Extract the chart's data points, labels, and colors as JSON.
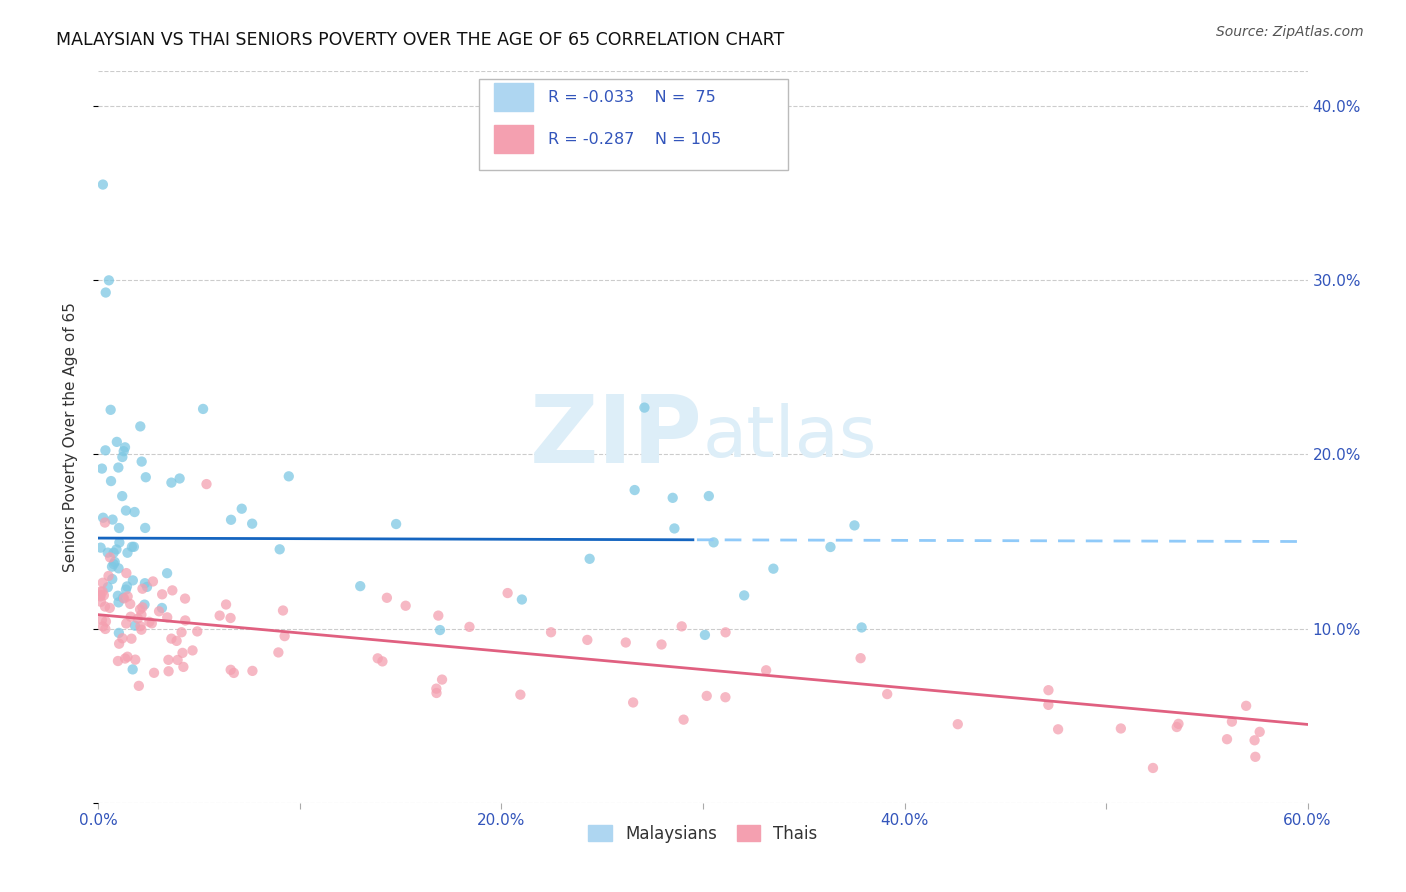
{
  "title": "MALAYSIAN VS THAI SENIORS POVERTY OVER THE AGE OF 65 CORRELATION CHART",
  "source": "Source: ZipAtlas.com",
  "ylabel": "Seniors Poverty Over the Age of 65",
  "xlim": [
    0.0,
    0.6
  ],
  "ylim": [
    0.0,
    0.42
  ],
  "xticks": [
    0.0,
    0.1,
    0.2,
    0.3,
    0.4,
    0.5,
    0.6
  ],
  "yticks": [
    0.0,
    0.1,
    0.2,
    0.3,
    0.4
  ],
  "ytick_labels_right": [
    "",
    "10.0%",
    "20.0%",
    "30.0%",
    "40.0%"
  ],
  "xtick_labels": [
    "0.0%",
    "",
    "20.0%",
    "",
    "40.0%",
    "",
    "60.0%"
  ],
  "legend_label1": "Malaysians",
  "legend_label2": "Thais",
  "r1": "-0.033",
  "n1": "75",
  "r2": "-0.287",
  "n2": "105",
  "color_malaysia": "#7ec8e3",
  "color_thai": "#f4a0b0",
  "trendline_malaysia_solid": "#1565c0",
  "trendline_malaysia_dash": "#90caf9",
  "trendline_thai": "#e06080",
  "watermark_text": "ZIPatlas",
  "watermark_color": "#ddeef8",
  "background_color": "#ffffff",
  "grid_color": "#cccccc",
  "text_color": "#3355bb",
  "mal_slope": -0.033,
  "mal_intercept": 0.152,
  "thai_slope": -0.105,
  "thai_intercept": 0.108
}
